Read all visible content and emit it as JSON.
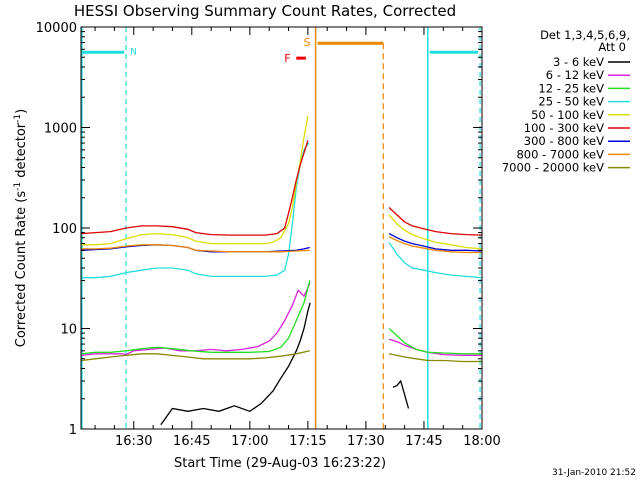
{
  "chart_data": {
    "type": "line",
    "title": "HESSI Observing Summary Count Rates, Corrected",
    "xlabel": "Start Time (29-Aug-03 16:23:22)",
    "ylabel": "Corrected Count Rate (s",
    "ylabel_sup": "-1",
    "ylabel_mid": " detector",
    "ylabel_sup2": "-1",
    "ylabel_end": ")",
    "date_stamp": "31-Jan-2010 21:52",
    "y_scale": "log",
    "xlim_minutes": [
      16.3667,
      120
    ],
    "ylim": [
      1,
      10000
    ],
    "x_ticks": [
      {
        "label": "16:30",
        "min": 30
      },
      {
        "label": "16:45",
        "min": 45
      },
      {
        "label": "17:00",
        "min": 60
      },
      {
        "label": "17:15",
        "min": 75
      },
      {
        "label": "17:30",
        "min": 90
      },
      {
        "label": "17:45",
        "min": 105
      },
      {
        "label": "18:00",
        "min": 120
      }
    ],
    "y_ticks": [
      {
        "label": "1",
        "v": 1
      },
      {
        "label": "10",
        "v": 10
      },
      {
        "label": "100",
        "v": 100
      },
      {
        "label": "1000",
        "v": 1000
      },
      {
        "label": "10000",
        "v": 10000
      }
    ],
    "legend": {
      "header1": "Det 1,3,4,5,6,9,",
      "header2": "Att 0",
      "placement": "right"
    },
    "markers": {
      "night": {
        "label": "N",
        "color": "#22dddd",
        "bars": [
          [
            16.4,
            27.5
          ],
          [
            106.5,
            119
          ]
        ],
        "level": 5600,
        "solid_lines": [
          16.6,
          106
        ],
        "dashed_lines": [
          28,
          119.5
        ]
      },
      "saa": {
        "label": "S",
        "color": "#ee8800",
        "bar": [
          77.5,
          94.5
        ],
        "level": 6900,
        "solid_lines": [
          77
        ],
        "dashed_lines": [
          94.5
        ]
      },
      "flare": {
        "label": "F",
        "color": "#ee0000",
        "bar": [
          72,
          74.5
        ],
        "level": 4900
      }
    },
    "series": [
      {
        "name": "3 - 6 keV",
        "color": "#000000",
        "segments": [
          [
            [
              37,
              1.1
            ],
            [
              40,
              1.6
            ],
            [
              44,
              1.5
            ],
            [
              48,
              1.6
            ],
            [
              52,
              1.5
            ],
            [
              56,
              1.7
            ],
            [
              60,
              1.5
            ],
            [
              63,
              1.8
            ],
            [
              66,
              2.4
            ],
            [
              68,
              3.2
            ],
            [
              70,
              4.2
            ],
            [
              72,
              6.0
            ],
            [
              73,
              7.5
            ],
            [
              74,
              10
            ],
            [
              75,
              15
            ],
            [
              75.6,
              18
            ]
          ],
          [
            [
              97,
              2.6
            ],
            [
              98,
              2.7
            ],
            [
              99,
              3.0
            ],
            [
              100,
              2.2
            ],
            [
              101,
              1.6
            ]
          ]
        ]
      },
      {
        "name": "6 - 12 keV",
        "color": "#dd22dd",
        "segments": [
          [
            [
              16.5,
              5.4
            ],
            [
              20,
              5.6
            ],
            [
              24,
              5.6
            ],
            [
              27,
              5.6
            ],
            [
              28,
              5.5
            ],
            [
              30,
              6.0
            ],
            [
              34,
              6.2
            ],
            [
              38,
              6.4
            ],
            [
              42,
              6.0
            ],
            [
              46,
              6.0
            ],
            [
              50,
              6.2
            ],
            [
              54,
              6.0
            ],
            [
              58,
              6.2
            ],
            [
              62,
              6.6
            ],
            [
              65,
              7.5
            ],
            [
              67,
              9
            ],
            [
              69,
              12
            ],
            [
              71,
              17
            ],
            [
              72.5,
              24
            ],
            [
              74,
              21
            ],
            [
              75.5,
              28
            ]
          ],
          [
            [
              96,
              7.8
            ],
            [
              98,
              7.4
            ],
            [
              100,
              6.8
            ],
            [
              103,
              6.2
            ],
            [
              106,
              5.8
            ],
            [
              110,
              5.5
            ],
            [
              115,
              5.4
            ],
            [
              120,
              5.4
            ]
          ]
        ]
      },
      {
        "name": "12 - 25 keV",
        "color": "#22dd22",
        "segments": [
          [
            [
              16.5,
              5.6
            ],
            [
              20,
              5.8
            ],
            [
              24,
              5.8
            ],
            [
              28,
              6.0
            ],
            [
              32,
              6.3
            ],
            [
              36,
              6.5
            ],
            [
              40,
              6.3
            ],
            [
              45,
              6.0
            ],
            [
              50,
              5.8
            ],
            [
              55,
              5.8
            ],
            [
              60,
              5.8
            ],
            [
              65,
              5.9
            ],
            [
              68,
              6.5
            ],
            [
              70,
              8
            ],
            [
              72,
              12
            ],
            [
              74,
              18
            ],
            [
              75.5,
              30
            ]
          ],
          [
            [
              96,
              10
            ],
            [
              98,
              8.5
            ],
            [
              100,
              7.2
            ],
            [
              103,
              6.2
            ],
            [
              106,
              5.8
            ],
            [
              110,
              5.7
            ],
            [
              115,
              5.6
            ],
            [
              120,
              5.6
            ]
          ]
        ]
      },
      {
        "name": "25 - 50 keV",
        "color": "#22dddd",
        "segments": [
          [
            [
              16.5,
              32
            ],
            [
              20,
              32
            ],
            [
              24,
              33
            ],
            [
              28,
              36
            ],
            [
              32,
              38
            ],
            [
              36,
              40
            ],
            [
              40,
              40
            ],
            [
              44,
              38
            ],
            [
              46,
              35
            ],
            [
              50,
              33
            ],
            [
              55,
              33
            ],
            [
              60,
              33
            ],
            [
              64,
              33
            ],
            [
              67,
              34
            ],
            [
              69,
              38
            ],
            [
              70,
              55
            ],
            [
              71,
              110
            ],
            [
              72,
              250
            ],
            [
              73,
              420
            ],
            [
              74,
              600
            ],
            [
              75.2,
              700
            ]
          ],
          [
            [
              96,
              72
            ],
            [
              98,
              55
            ],
            [
              100,
              45
            ],
            [
              102,
              40
            ],
            [
              105,
              38
            ],
            [
              108,
              36
            ],
            [
              112,
              34
            ],
            [
              116,
              33
            ],
            [
              120,
              32
            ]
          ]
        ]
      },
      {
        "name": "50 - 100 keV",
        "color": "#dddd00",
        "segments": [
          [
            [
              16.5,
              68
            ],
            [
              20,
              68
            ],
            [
              24,
              70
            ],
            [
              28,
              78
            ],
            [
              32,
              86
            ],
            [
              36,
              88
            ],
            [
              40,
              86
            ],
            [
              44,
              80
            ],
            [
              46,
              74
            ],
            [
              50,
              70
            ],
            [
              55,
              70
            ],
            [
              60,
              70
            ],
            [
              64,
              70
            ],
            [
              66,
              72
            ],
            [
              68,
              80
            ],
            [
              70,
              110
            ],
            [
              71,
              160
            ],
            [
              72,
              280
            ],
            [
              73,
              450
            ],
            [
              74,
              800
            ],
            [
              75,
              1300
            ]
          ],
          [
            [
              96,
              135
            ],
            [
              98,
              110
            ],
            [
              100,
              95
            ],
            [
              102,
              86
            ],
            [
              105,
              78
            ],
            [
              108,
              72
            ],
            [
              112,
              68
            ],
            [
              116,
              64
            ],
            [
              120,
              62
            ]
          ]
        ]
      },
      {
        "name": "100 - 300 keV",
        "color": "#dd0000",
        "segments": [
          [
            [
              16.5,
              88
            ],
            [
              20,
              90
            ],
            [
              24,
              92
            ],
            [
              28,
              100
            ],
            [
              32,
              105
            ],
            [
              36,
              105
            ],
            [
              40,
              103
            ],
            [
              44,
              97
            ],
            [
              46,
              90
            ],
            [
              50,
              86
            ],
            [
              55,
              85
            ],
            [
              60,
              85
            ],
            [
              64,
              85
            ],
            [
              67,
              88
            ],
            [
              69,
              100
            ],
            [
              70,
              140
            ],
            [
              71,
              200
            ],
            [
              72,
              300
            ],
            [
              73,
              420
            ],
            [
              74,
              560
            ],
            [
              75,
              740
            ]
          ],
          [
            [
              96,
              160
            ],
            [
              98,
              135
            ],
            [
              100,
              115
            ],
            [
              102,
              105
            ],
            [
              105,
              98
            ],
            [
              108,
              92
            ],
            [
              112,
              88
            ],
            [
              116,
              86
            ],
            [
              120,
              85
            ]
          ]
        ]
      },
      {
        "name": "300 - 800 keV",
        "color": "#0000dd",
        "segments": [
          [
            [
              16.5,
              60
            ],
            [
              20,
              61
            ],
            [
              24,
              62
            ],
            [
              28,
              65
            ],
            [
              32,
              67
            ],
            [
              36,
              68
            ],
            [
              40,
              67
            ],
            [
              44,
              64
            ],
            [
              46,
              60
            ],
            [
              50,
              58
            ],
            [
              55,
              58
            ],
            [
              60,
              58
            ],
            [
              64,
              58
            ],
            [
              68,
              59
            ],
            [
              72,
              60
            ],
            [
              74,
              62
            ],
            [
              75.5,
              64
            ]
          ],
          [
            [
              96,
              88
            ],
            [
              98,
              80
            ],
            [
              100,
              74
            ],
            [
              102,
              70
            ],
            [
              105,
              66
            ],
            [
              108,
              62
            ],
            [
              112,
              60
            ],
            [
              116,
              60
            ],
            [
              120,
              59
            ]
          ]
        ]
      },
      {
        "name": "800 - 7000 keV",
        "color": "#ee8800",
        "segments": [
          [
            [
              16.5,
              62
            ],
            [
              20,
              62
            ],
            [
              24,
              63
            ],
            [
              28,
              66
            ],
            [
              32,
              68
            ],
            [
              36,
              68
            ],
            [
              40,
              67
            ],
            [
              44,
              64
            ],
            [
              46,
              60
            ],
            [
              50,
              59
            ],
            [
              55,
              58
            ],
            [
              60,
              58
            ],
            [
              64,
              58
            ],
            [
              68,
              58
            ],
            [
              72,
              59
            ],
            [
              75.5,
              60
            ]
          ],
          [
            [
              96,
              82
            ],
            [
              98,
              75
            ],
            [
              100,
              70
            ],
            [
              102,
              66
            ],
            [
              105,
              63
            ],
            [
              108,
              60
            ],
            [
              112,
              58
            ],
            [
              116,
              57
            ],
            [
              120,
              57
            ]
          ]
        ]
      },
      {
        "name": "7000 - 20000 keV",
        "color": "#888800",
        "segments": [
          [
            [
              16.5,
              4.8
            ],
            [
              20,
              5.0
            ],
            [
              24,
              5.2
            ],
            [
              28,
              5.4
            ],
            [
              32,
              5.6
            ],
            [
              36,
              5.6
            ],
            [
              40,
              5.4
            ],
            [
              44,
              5.2
            ],
            [
              48,
              5.0
            ],
            [
              52,
              5.0
            ],
            [
              56,
              5.0
            ],
            [
              60,
              5.0
            ],
            [
              64,
              5.1
            ],
            [
              68,
              5.3
            ],
            [
              72,
              5.6
            ],
            [
              75.5,
              6.0
            ]
          ],
          [
            [
              96,
              5.6
            ],
            [
              98,
              5.4
            ],
            [
              100,
              5.2
            ],
            [
              103,
              5.0
            ],
            [
              106,
              4.8
            ],
            [
              110,
              4.8
            ],
            [
              115,
              4.7
            ],
            [
              120,
              4.7
            ]
          ]
        ]
      }
    ]
  }
}
